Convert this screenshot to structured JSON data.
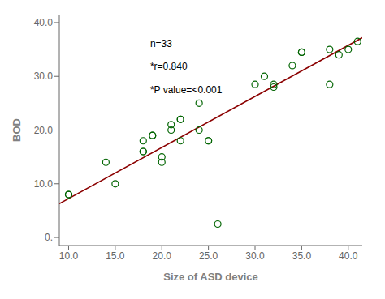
{
  "chart_data": {
    "type": "scatter",
    "xlabel": "Size of ASD device",
    "ylabel": "BOD",
    "series": [
      {
        "type": "scatter",
        "marker": "open_circle",
        "color": "#006400",
        "x": [
          10,
          10,
          14,
          15,
          18,
          18,
          18,
          19,
          19,
          20,
          20,
          21,
          21,
          22,
          22,
          22,
          24,
          24,
          25,
          25,
          26,
          30,
          31,
          32,
          32,
          34,
          35,
          35,
          38,
          38,
          39,
          40,
          41
        ],
        "values": [
          8,
          8,
          14,
          10,
          16,
          16,
          18,
          19,
          19,
          15,
          14,
          20,
          21,
          22,
          22,
          18,
          20,
          25,
          18,
          18,
          2.5,
          28.5,
          30,
          28,
          28.5,
          32,
          34.5,
          34.5,
          28.5,
          35,
          34,
          35,
          36.5
        ]
      },
      {
        "type": "line",
        "color": "#8B0000",
        "x": [
          9.0,
          41.5
        ],
        "values": [
          6.3,
          37.2
        ]
      }
    ],
    "xlim": [
      9.0,
      41.5
    ],
    "ylim": [
      -1.5,
      41.5
    ],
    "xticks": [
      {
        "value": 10,
        "label": "10.0"
      },
      {
        "value": 15,
        "label": "15.0"
      },
      {
        "value": 20,
        "label": "20.0"
      },
      {
        "value": 25,
        "label": "25.0"
      },
      {
        "value": 30,
        "label": "30.0"
      },
      {
        "value": 35,
        "label": "35.0"
      },
      {
        "value": 40,
        "label": "40.0"
      }
    ],
    "yticks": [
      {
        "value": 0,
        "label": "0."
      },
      {
        "value": 10,
        "label": "10.0"
      },
      {
        "value": 20,
        "label": "20.0"
      },
      {
        "value": 30,
        "label": "30.0"
      },
      {
        "value": 40,
        "label": "40.0"
      }
    ],
    "annotations": [
      "n=33",
      "*r=0.840",
      "*P value=<0.001"
    ],
    "grid": false
  }
}
